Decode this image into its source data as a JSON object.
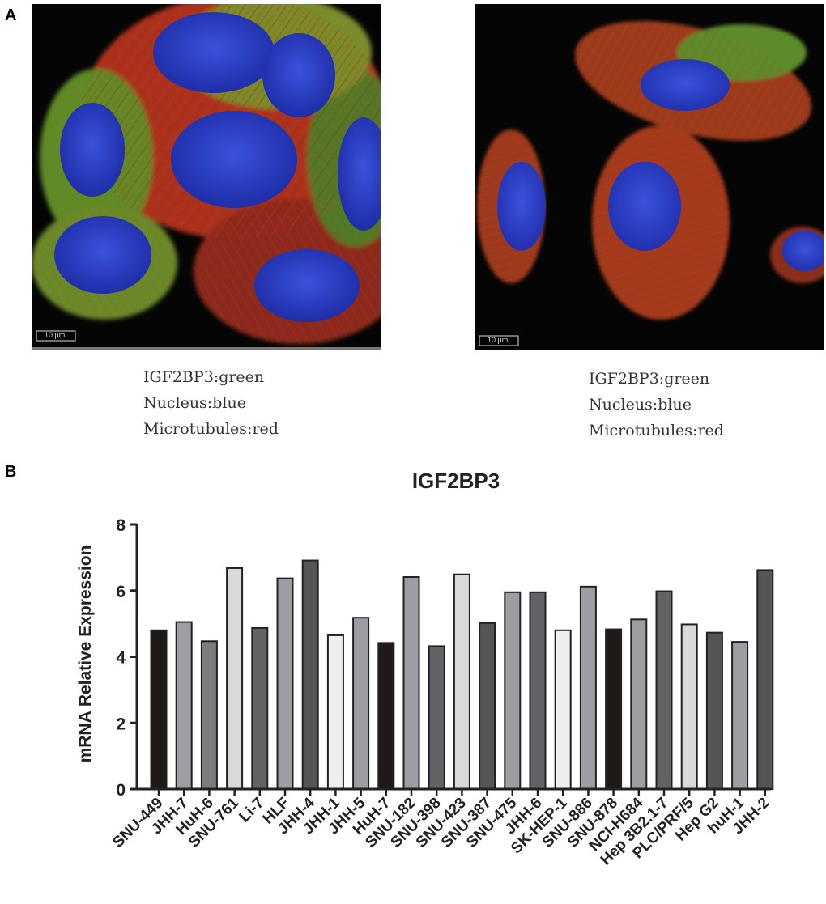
{
  "panels": {
    "a_label": "A",
    "b_label": "B"
  },
  "micrographs": [
    {
      "scale_bar": "10 µm",
      "legend": [
        "IGF2BP3:green",
        "Nucleus:blue",
        "Microtubules:red"
      ]
    },
    {
      "scale_bar": "10 µm",
      "legend": [
        "IGF2BP3:green",
        "Nucleus:blue",
        "Microtubules:red"
      ]
    }
  ],
  "colors": {
    "nucleus": "#2b3fc4",
    "microtubules": "#d8231c",
    "igf2bp3": "#4cae2c",
    "bar_black": "#1f1a17",
    "bar_dark": "#555555",
    "bar_mid": "#9c9ea3",
    "bar_light": "#d9d9d9",
    "bar_white": "#eeeeee"
  },
  "chart_data": {
    "type": "bar",
    "title": "IGF2BP3",
    "ylabel": "mRNA Relative Expression",
    "xlabel": "",
    "ylim": [
      0,
      8
    ],
    "yticks": [
      0,
      2,
      4,
      6,
      8
    ],
    "grid": false,
    "categories": [
      "SNU-449",
      "JHH-7",
      "HuH-6",
      "SNU-761",
      "Li-7",
      "HLF",
      "JHH-4",
      "JHH-1",
      "JHH-5",
      "HuH-7",
      "SNU-182",
      "SNU-398",
      "SNU-423",
      "SNU-387",
      "SNU-475",
      "JHH-6",
      "SK-HEP-1",
      "SNU-886",
      "SNU-878",
      "NCI-H684",
      "Hep 3B2.1-7",
      "PLC/PRF/5",
      "Hep G2",
      "huH-1",
      "JHH-2"
    ],
    "values": [
      4.8,
      5.05,
      4.47,
      6.68,
      4.87,
      6.37,
      6.91,
      4.65,
      5.18,
      4.42,
      6.41,
      4.32,
      6.49,
      5.02,
      5.95,
      5.95,
      4.8,
      6.12,
      4.83,
      5.13,
      5.98,
      4.98,
      4.73,
      4.45,
      6.62
    ],
    "bar_colors": [
      "#1f1a17",
      "#9c9ea3",
      "#7b7c80",
      "#d9d9d9",
      "#626366",
      "#9c9ea3",
      "#555555",
      "#eeeeee",
      "#9c9ea3",
      "#1f1a17",
      "#9c9ea3",
      "#626366",
      "#d9d9d9",
      "#555555",
      "#9c9ea3",
      "#626366",
      "#eeeeee",
      "#9c9ea3",
      "#1f1a17",
      "#9c9ea3",
      "#626366",
      "#d9d9d9",
      "#555555",
      "#9c9ea3",
      "#555555"
    ]
  }
}
